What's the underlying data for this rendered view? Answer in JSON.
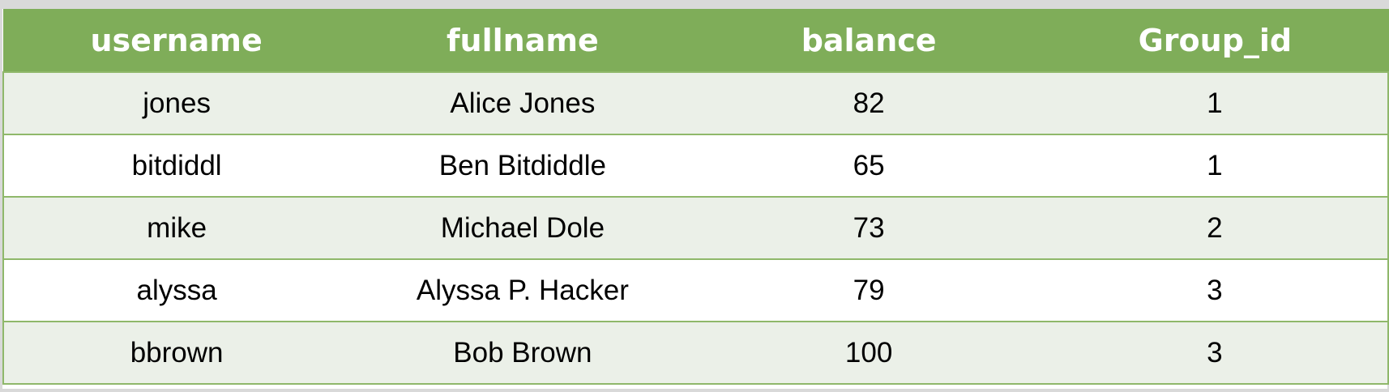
{
  "table": {
    "headers": [
      "username",
      "fullname",
      "balance",
      "Group_id"
    ],
    "rows": [
      [
        "jones",
        "Alice Jones",
        "82",
        "1"
      ],
      [
        "bitdiddl",
        "Ben Bitdiddle",
        "65",
        "1"
      ],
      [
        "mike",
        "Michael Dole",
        "73",
        "2"
      ],
      [
        "alyssa",
        "Alyssa P. Hacker",
        "79",
        "3"
      ],
      [
        "bbrown",
        "Bob Brown",
        "100",
        "3"
      ]
    ]
  },
  "colors": {
    "header_bg": "#7fad59",
    "header_text": "#ffffff",
    "row_alt_bg": "#ebf0e8",
    "row_bg": "#ffffff",
    "border": "#8fb86a",
    "outer_bg": "#d9d9d9"
  }
}
